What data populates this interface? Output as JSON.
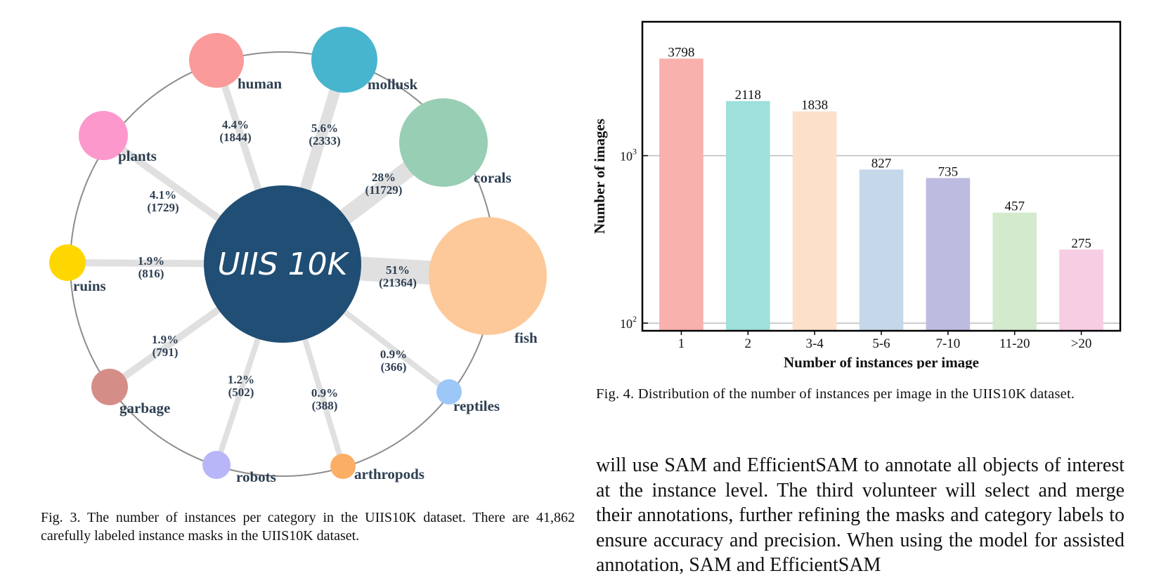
{
  "fig3": {
    "center_label": "UIIS 10K",
    "center_color": "#204e74",
    "categories": [
      {
        "name": "human",
        "pct": "4.4%",
        "count": "(1844)",
        "color": "#fa9a9a"
      },
      {
        "name": "mollusk",
        "pct": "5.6%",
        "count": "(2333)",
        "color": "#48b5cf"
      },
      {
        "name": "corals",
        "pct": "28%",
        "count": "(11729)",
        "color": "#98ceb4"
      },
      {
        "name": "fish",
        "pct": "51%",
        "count": "(21364)",
        "color": "#fdc998"
      },
      {
        "name": "reptiles",
        "pct": "0.9%",
        "count": "(366)",
        "color": "#9cc7f7"
      },
      {
        "name": "arthropods",
        "pct": "0.9%",
        "count": "(388)",
        "color": "#fbae65"
      },
      {
        "name": "robots",
        "pct": "1.2%",
        "count": "(502)",
        "color": "#b8b6f9"
      },
      {
        "name": "garbage",
        "pct": "1.9%",
        "count": "(791)",
        "color": "#d58d88"
      },
      {
        "name": "ruins",
        "pct": "1.9%",
        "count": "(816)",
        "color": "#ffd700"
      },
      {
        "name": "plants",
        "pct": "4.1%",
        "count": "(1729)",
        "color": "#fd98cd"
      }
    ],
    "caption": "Fig. 3.  The number of instances per category in the UIIS10K dataset. There are 41,862 carefully labeled instance masks in the UIIS10K dataset."
  },
  "chart_data": {
    "type": "bar",
    "categories": [
      "1",
      "2",
      "3-4",
      "5-6",
      "7-10",
      "11-20",
      ">20"
    ],
    "values": [
      3798,
      2118,
      1838,
      827,
      735,
      457,
      275
    ],
    "colors": [
      "#f8b1ad",
      "#9fe0dc",
      "#fde0c9",
      "#c5d8ea",
      "#bdbbe0",
      "#d3ebcc",
      "#f6cde3"
    ],
    "xlabel": "Number of instances per image",
    "ylabel": "Number of images",
    "yscale": "log",
    "ylim": [
      90,
      6300
    ],
    "yticks": [
      {
        "value": 100,
        "base": "10",
        "exp": "2"
      },
      {
        "value": 1000,
        "base": "10",
        "exp": "3"
      }
    ],
    "grid": true
  },
  "fig4": {
    "caption": "Fig. 4.  Distribution of the number of instances per image in the UIIS10K dataset."
  },
  "body_text": "will use SAM and EfficientSAM to annotate all objects of interest at the instance level. The third volunteer will select and merge their annotations, further refining the masks and category labels to ensure accuracy and precision. When using the model for assisted annotation, SAM and EfficientSAM"
}
